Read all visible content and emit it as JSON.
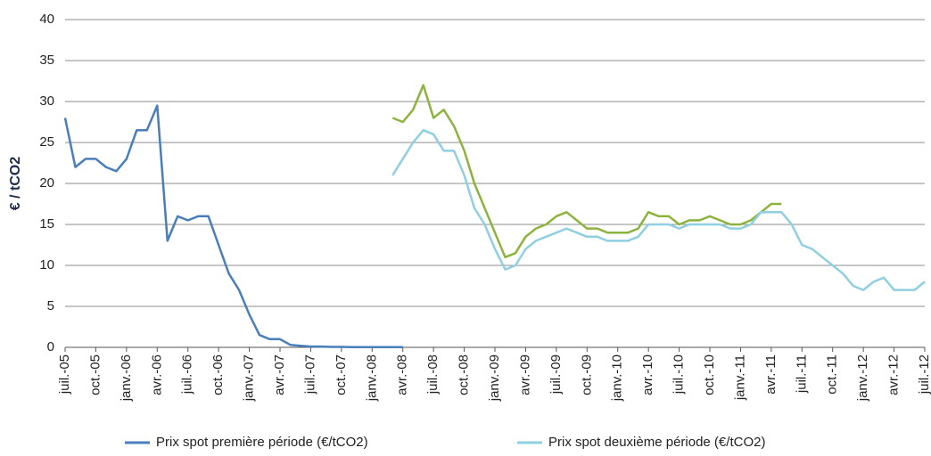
{
  "chart_data": {
    "type": "line",
    "y_label": "€ / tCO2",
    "x": [
      "2005-07",
      "2005-08",
      "2005-09",
      "2005-10",
      "2005-11",
      "2005-12",
      "2006-01",
      "2006-02",
      "2006-03",
      "2006-04",
      "2006-05",
      "2006-06",
      "2006-07",
      "2006-08",
      "2006-09",
      "2006-10",
      "2006-11",
      "2006-12",
      "2007-01",
      "2007-02",
      "2007-03",
      "2007-04",
      "2007-05",
      "2007-06",
      "2007-07",
      "2007-08",
      "2007-09",
      "2007-10",
      "2007-11",
      "2007-12",
      "2008-01",
      "2008-02",
      "2008-03",
      "2008-04",
      "2008-05",
      "2008-06",
      "2008-07",
      "2008-08",
      "2008-09",
      "2008-10",
      "2008-11",
      "2008-12",
      "2009-01",
      "2009-02",
      "2009-03",
      "2009-04",
      "2009-05",
      "2009-06",
      "2009-07",
      "2009-08",
      "2009-09",
      "2009-10",
      "2009-11",
      "2009-12",
      "2010-01",
      "2010-02",
      "2010-03",
      "2010-04",
      "2010-05",
      "2010-06",
      "2010-07",
      "2010-08",
      "2010-09",
      "2010-10",
      "2010-11",
      "2010-12",
      "2011-01",
      "2011-02",
      "2011-03",
      "2011-04",
      "2011-05",
      "2011-06",
      "2011-07",
      "2011-08",
      "2011-09",
      "2011-10",
      "2011-11",
      "2011-12",
      "2012-01",
      "2012-02",
      "2012-03",
      "2012-04",
      "2012-05",
      "2012-06",
      "2012-07"
    ],
    "series": [
      {
        "name": "Prix spot première période (€/tCO2)",
        "color": "#4a7ebb",
        "values": [
          28,
          22,
          23,
          23,
          22,
          21.5,
          23,
          26.5,
          26.5,
          29.5,
          13,
          16,
          15.5,
          16,
          16,
          12.5,
          9,
          7,
          4,
          1.5,
          1,
          1,
          0.3,
          0.2,
          0.1,
          0.1,
          0.05,
          0.05,
          0.03,
          0.03,
          0.02,
          0.02,
          0.02,
          0.02,
          null,
          null,
          null,
          null,
          null,
          null,
          null,
          null,
          null,
          null,
          null,
          null,
          null,
          null,
          null,
          null,
          null,
          null,
          null,
          null,
          null,
          null,
          null,
          null,
          null,
          null,
          null,
          null,
          null,
          null,
          null,
          null,
          null,
          null,
          null,
          null,
          null,
          null,
          null,
          null,
          null,
          null,
          null,
          null,
          null,
          null,
          null,
          null,
          null,
          null,
          null
        ]
      },
      {
        "color": "#8db33f",
        "values": [
          null,
          null,
          null,
          null,
          null,
          null,
          null,
          null,
          null,
          null,
          null,
          null,
          null,
          null,
          null,
          null,
          null,
          null,
          null,
          null,
          null,
          null,
          null,
          null,
          null,
          null,
          null,
          null,
          null,
          null,
          null,
          null,
          28,
          27.5,
          29,
          32,
          28,
          29,
          27,
          24,
          20,
          17,
          14,
          11,
          11.5,
          13.5,
          14.5,
          15,
          16,
          16.5,
          15.5,
          14.5,
          14.5,
          14,
          14,
          14,
          14.5,
          16.5,
          16,
          16,
          15,
          15.5,
          15.5,
          16,
          15.5,
          15,
          15,
          15.5,
          16.5,
          17.5,
          17.5,
          null,
          null,
          null,
          null,
          null,
          null,
          null,
          null,
          null,
          null,
          null,
          null,
          null,
          null
        ]
      },
      {
        "name": "Prix spot deuxième période  (€/tCO2)",
        "color": "#8fcfe0",
        "values": [
          null,
          null,
          null,
          null,
          null,
          null,
          null,
          null,
          null,
          null,
          null,
          null,
          null,
          null,
          null,
          null,
          null,
          null,
          null,
          null,
          null,
          null,
          null,
          null,
          null,
          null,
          null,
          null,
          null,
          null,
          null,
          null,
          21,
          23,
          25,
          26.5,
          26,
          24,
          24,
          21,
          17,
          15,
          12,
          9.5,
          10,
          12,
          13,
          13.5,
          14,
          14.5,
          14,
          13.5,
          13.5,
          13,
          13,
          13,
          13.5,
          15,
          15,
          15,
          14.5,
          15,
          15,
          15,
          15,
          14.5,
          14.5,
          15,
          16.5,
          16.5,
          16.5,
          15,
          12.5,
          12,
          11,
          10,
          9,
          7.5,
          7,
          8,
          8.5,
          7,
          7,
          7,
          8
        ]
      }
    ],
    "xlim": [
      "2005-07",
      "2012-07"
    ],
    "xticks": [
      {
        "value": "2005-07",
        "label": "juil.-05"
      },
      {
        "value": "2005-10",
        "label": "oct.-05"
      },
      {
        "value": "2006-01",
        "label": "janv.-06"
      },
      {
        "value": "2006-04",
        "label": "avr.-06"
      },
      {
        "value": "2006-07",
        "label": "juil.-06"
      },
      {
        "value": "2006-10",
        "label": "oct.-06"
      },
      {
        "value": "2007-01",
        "label": "janv.-07"
      },
      {
        "value": "2007-04",
        "label": "avr.-07"
      },
      {
        "value": "2007-07",
        "label": "juil.-07"
      },
      {
        "value": "2007-10",
        "label": "oct.-07"
      },
      {
        "value": "2008-01",
        "label": "janv.-08"
      },
      {
        "value": "2008-04",
        "label": "avr.-08"
      },
      {
        "value": "2008-07",
        "label": "juil.-08"
      },
      {
        "value": "2008-10",
        "label": "oct.-08"
      },
      {
        "value": "2009-01",
        "label": "janv.-09"
      },
      {
        "value": "2009-04",
        "label": "avr.-09"
      },
      {
        "value": "2009-07",
        "label": "juil.-09"
      },
      {
        "value": "2009-10",
        "label": "oct.-09"
      },
      {
        "value": "2010-01",
        "label": "janv.-10"
      },
      {
        "value": "2010-04",
        "label": "avr.-10"
      },
      {
        "value": "2010-07",
        "label": "juil.-10"
      },
      {
        "value": "2010-10",
        "label": "oct.-10"
      },
      {
        "value": "2011-01",
        "label": "janv.-11"
      },
      {
        "value": "2011-04",
        "label": "avr.-11"
      },
      {
        "value": "2011-07",
        "label": "juil.-11"
      },
      {
        "value": "2011-10",
        "label": "oct.-11"
      },
      {
        "value": "2012-01",
        "label": "janv.-12"
      },
      {
        "value": "2012-04",
        "label": "avr.-12"
      },
      {
        "value": "2012-07",
        "label": "juil.-12"
      }
    ],
    "ylim": [
      0,
      40
    ],
    "yticks": [
      0,
      5,
      10,
      15,
      20,
      25,
      30,
      35,
      40
    ],
    "grid": true
  }
}
